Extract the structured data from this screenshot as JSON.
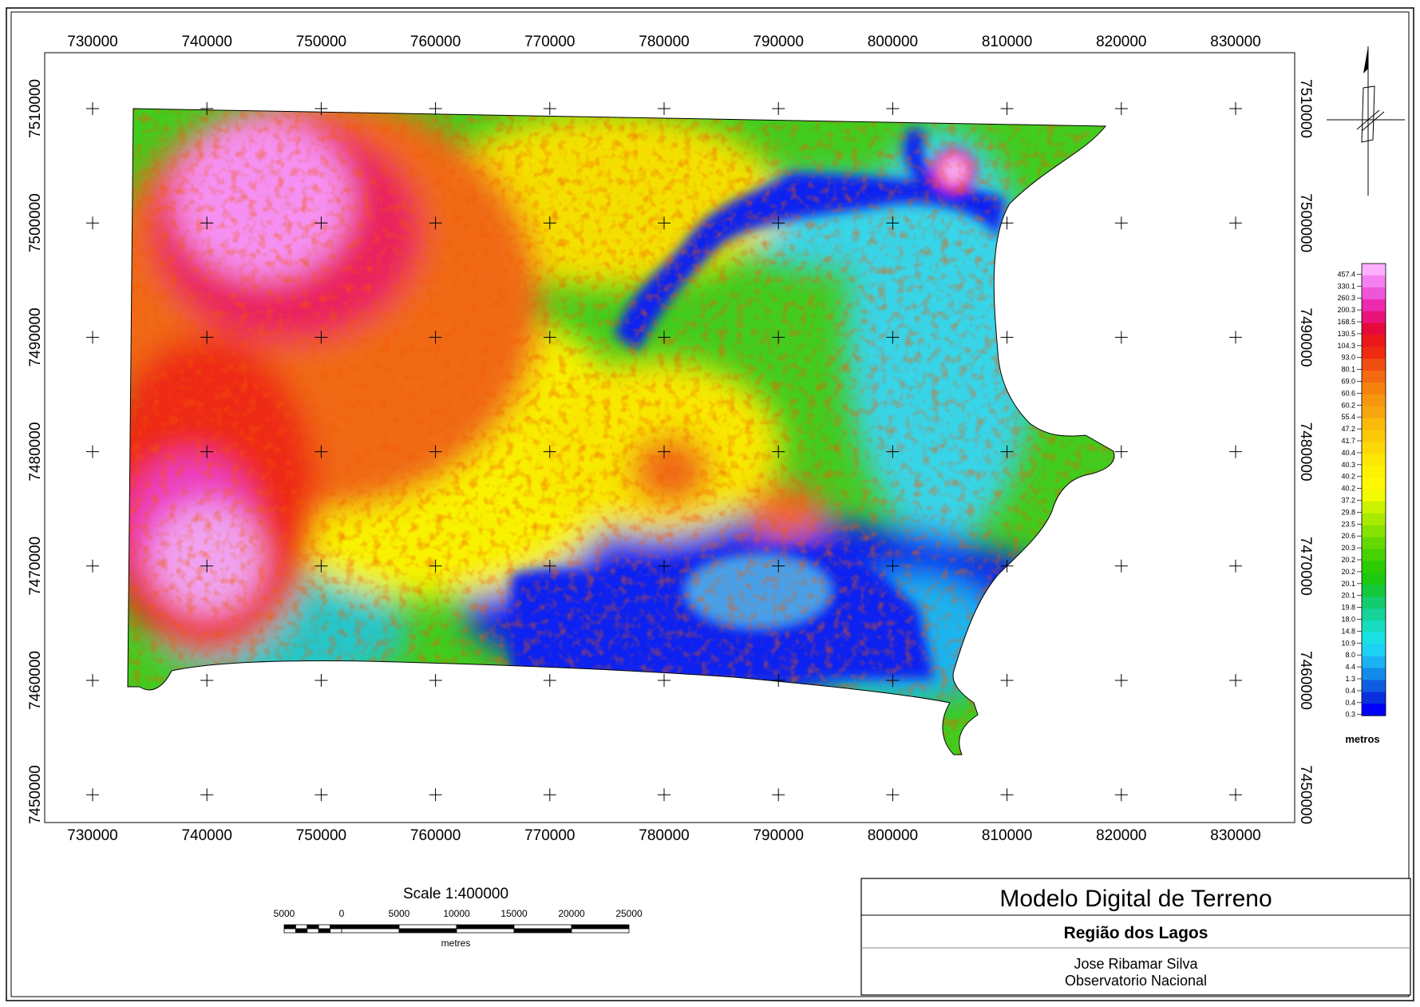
{
  "map": {
    "easting_labels": [
      "730000",
      "740000",
      "750000",
      "760000",
      "770000",
      "780000",
      "790000",
      "800000",
      "810000",
      "820000",
      "830000"
    ],
    "northing_labels": [
      "7510000",
      "7500000",
      "7490000",
      "7480000",
      "7470000",
      "7460000",
      "7450000"
    ],
    "easting_values": [
      730000,
      740000,
      750000,
      760000,
      770000,
      780000,
      790000,
      800000,
      810000,
      820000,
      830000
    ],
    "northing_values": [
      7510000,
      7500000,
      7490000,
      7480000,
      7470000,
      7460000,
      7450000
    ]
  },
  "legend": {
    "values": [
      "457.4",
      "330.1",
      "260.3",
      "200.3",
      "168.5",
      "130.5",
      "104.3",
      "93.0",
      "80.1",
      "69.0",
      "60.6",
      "60.2",
      "55.4",
      "47.2",
      "41.7",
      "40.4",
      "40.3",
      "40.2",
      "40.2",
      "37.2",
      "29.8",
      "23.5",
      "20.6",
      "20.3",
      "20.2",
      "20.2",
      "20.1",
      "20.1",
      "19.8",
      "18.0",
      "14.8",
      "10.9",
      "8.0",
      "4.4",
      "1.3",
      "0.4",
      "0.4",
      "0.3"
    ],
    "colors": [
      "#ffb0ff",
      "#f580f0",
      "#ee55d8",
      "#ec2aae",
      "#e8147a",
      "#e60a3c",
      "#ea1818",
      "#ee2a10",
      "#f04e10",
      "#f46a10",
      "#f5820e",
      "#f69610",
      "#f8a60e",
      "#faba0a",
      "#fcc808",
      "#fcd808",
      "#fde804",
      "#fef200",
      "#fff800",
      "#f2fb00",
      "#ccf200",
      "#a8ea00",
      "#86e200",
      "#64d800",
      "#46d200",
      "#2ccc00",
      "#1cc810",
      "#14c83c",
      "#14cc6e",
      "#14d49a",
      "#18dcc0",
      "#18e0e4",
      "#1cd2f6",
      "#1cb2f2",
      "#148ae8",
      "#0f5ee2",
      "#0a30de",
      "#0000ff"
    ],
    "unit": "metros"
  },
  "scale": {
    "title": "Scale 1:400000",
    "ticks": [
      "5000",
      "0",
      "5000",
      "10000",
      "15000",
      "20000",
      "25000"
    ],
    "unit": "metres"
  },
  "title_block": {
    "title": "Modelo Digital de Terreno",
    "subtitle": "Região dos Lagos",
    "author": "Jose Ribamar Silva",
    "institution": "Observatorio Nacional"
  }
}
